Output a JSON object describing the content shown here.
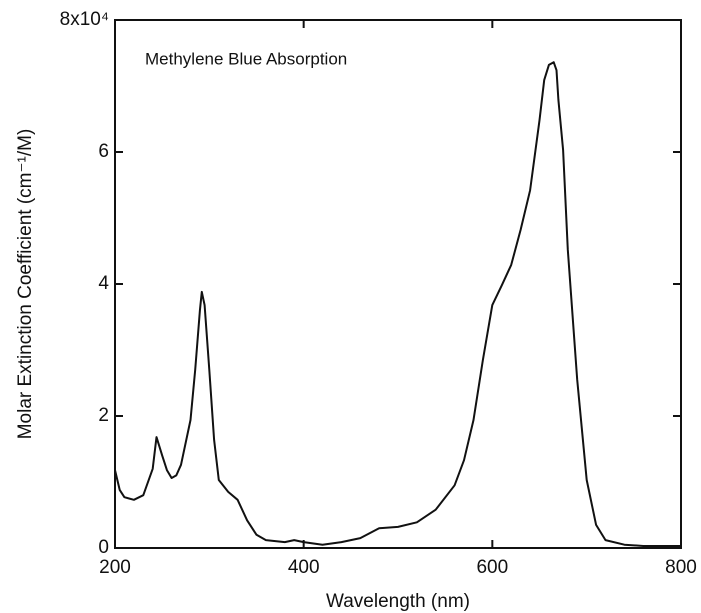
{
  "chart_data": {
    "type": "line",
    "annotation": "Methylene Blue Absorption",
    "x_label": "Wavelength (nm)",
    "y_label": "Molar Extinction Coefficient (cm⁻¹/M)",
    "xlim": [
      200,
      800
    ],
    "ylim": [
      0,
      8
    ],
    "xticks": [
      200,
      400,
      600,
      800
    ],
    "yticks": [
      0,
      2,
      4,
      6,
      {
        "value": 8,
        "label": "8x10⁴"
      }
    ],
    "series": [
      {
        "color": "#111111",
        "x": [
          200,
          205,
          210,
          220,
          230,
          240,
          244,
          250,
          255,
          260,
          265,
          270,
          280,
          285,
          290,
          292,
          295,
          300,
          305,
          310,
          320,
          330,
          340,
          350,
          360,
          380,
          390,
          400,
          420,
          440,
          460,
          480,
          500,
          520,
          540,
          560,
          570,
          580,
          590,
          600,
          610,
          620,
          630,
          640,
          650,
          655,
          660,
          665,
          668,
          670,
          675,
          680,
          690,
          700,
          710,
          720,
          740,
          760,
          800
        ],
        "values": [
          1.18,
          0.88,
          0.77,
          0.73,
          0.8,
          1.2,
          1.68,
          1.4,
          1.18,
          1.06,
          1.1,
          1.26,
          1.94,
          2.7,
          3.6,
          3.88,
          3.68,
          2.7,
          1.64,
          1.03,
          0.85,
          0.73,
          0.42,
          0.2,
          0.12,
          0.09,
          0.12,
          0.09,
          0.05,
          0.09,
          0.15,
          0.3,
          0.32,
          0.39,
          0.58,
          0.95,
          1.33,
          1.94,
          2.85,
          3.68,
          3.98,
          4.29,
          4.82,
          5.42,
          6.48,
          7.09,
          7.32,
          7.36,
          7.24,
          6.79,
          6.03,
          4.52,
          2.55,
          1.03,
          0.35,
          0.12,
          0.05,
          0.03,
          0.03
        ]
      }
    ]
  }
}
